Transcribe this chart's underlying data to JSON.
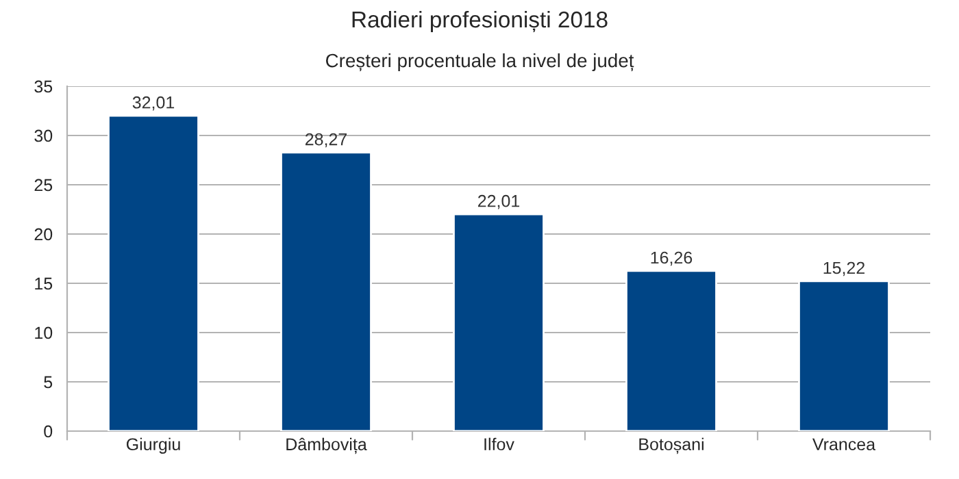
{
  "chart_data": {
    "type": "bar",
    "title": "Radieri profesioniști 2018",
    "subtitle": "Creșteri procentuale la nivel de județ",
    "categories": [
      "Giurgiu",
      "Dâmbovița",
      "Ilfov",
      "Botoșani",
      "Vrancea"
    ],
    "values": [
      32.01,
      28.27,
      22.01,
      16.26,
      15.22
    ],
    "value_labels": [
      "32,01",
      "28,27",
      "22,01",
      "16,26",
      "15,22"
    ],
    "color": "#004586",
    "ylim": [
      0,
      35
    ],
    "yticks": [
      0,
      5,
      10,
      15,
      20,
      25,
      30,
      35
    ],
    "grid": "y",
    "legend": false
  }
}
